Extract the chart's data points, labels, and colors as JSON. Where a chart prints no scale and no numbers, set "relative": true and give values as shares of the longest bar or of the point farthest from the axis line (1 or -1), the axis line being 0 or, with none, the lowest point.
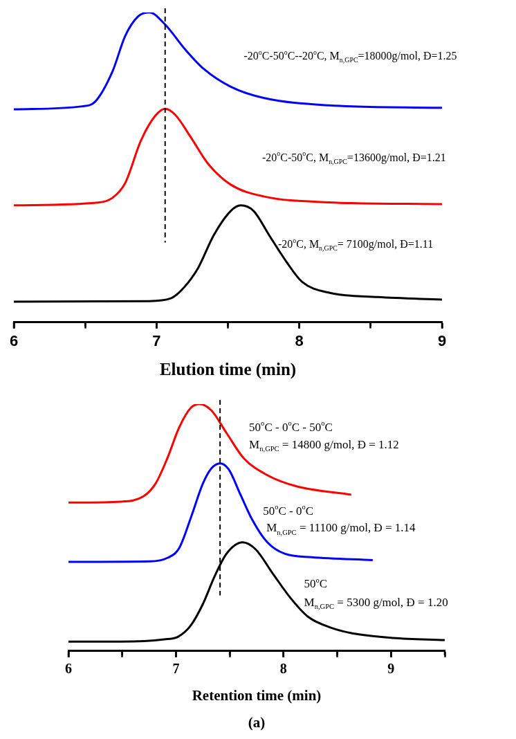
{
  "chart_data": [
    {
      "type": "line",
      "relative": true,
      "xlabel": "Elution time (min)",
      "xlim": [
        6,
        9
      ],
      "xticks": [
        6,
        {
          "value": 6.5,
          "label": null
        },
        7,
        {
          "value": 7.5,
          "label": null
        },
        8,
        {
          "value": 8.5,
          "label": null
        },
        9
      ],
      "tick_labels": "x",
      "legend": false,
      "series": [
        {
          "color": "#0000ff",
          "x": [
            6,
            6.48,
            6.57,
            6.69,
            6.78,
            6.87,
            6.95,
            7.06,
            7.2,
            7.33,
            7.52,
            7.75,
            8.21,
            9
          ],
          "values": [
            0.687,
            0.697,
            0.712,
            0.808,
            0.924,
            0.987,
            1,
            0.961,
            0.881,
            0.818,
            0.76,
            0.724,
            0.7,
            0.692
          ]
        },
        {
          "color": "#ff0000",
          "x": [
            6,
            6.59,
            6.69,
            6.78,
            6.89,
            6.99,
            7.06,
            7.13,
            7.24,
            7.36,
            7.52,
            7.75,
            8.21,
            9
          ],
          "values": [
            0.377,
            0.386,
            0.401,
            0.449,
            0.586,
            0.666,
            0.689,
            0.67,
            0.597,
            0.512,
            0.444,
            0.406,
            0.387,
            0.381
          ]
        },
        {
          "color": "#000000",
          "x": [
            6,
            6.94,
            7.1,
            7.19,
            7.29,
            7.4,
            7.52,
            7.59,
            7.68,
            7.79,
            7.91,
            8.02,
            8.21,
            8.55,
            9
          ],
          "values": [
            0.066,
            0.068,
            0.077,
            0.111,
            0.174,
            0.28,
            0.359,
            0.377,
            0.359,
            0.28,
            0.195,
            0.13,
            0.095,
            0.081,
            0.073
          ]
        }
      ],
      "ref_lines": [
        {
          "axis": "x",
          "value": 7.06,
          "line_style": "dashed",
          "color": "#000000"
        }
      ],
      "annotations": [
        "-20$^{o}$C-50$^{o}$C--20$^{o}$C, M$_{n,GPC}$=18000g/mol, Đ=1.25",
        "-20$^{o}$C-50$^{o}$C, M$_{n,GPC}$=13600g/mol, Đ=1.21",
        "-20$^{o}$C, M$_{n,GPC}$= 7100g/mol, Đ=1.11"
      ]
    },
    {
      "type": "line",
      "relative": true,
      "xlabel": "Retention time (min)",
      "xlim": [
        6,
        9.5
      ],
      "xticks": [
        6,
        {
          "value": 6.5,
          "label": null
        },
        7,
        {
          "value": 7.5,
          "label": null
        },
        8,
        {
          "value": 8.5,
          "label": null
        },
        9,
        {
          "value": 9.5,
          "label": null
        }
      ],
      "tick_labels": "x",
      "legend": false,
      "series": [
        {
          "color": "#ff0000",
          "x": [
            6,
            6.49,
            6.7,
            6.81,
            6.92,
            7.03,
            7.14,
            7.22,
            7.33,
            7.47,
            7.63,
            7.85,
            8.12,
            8.63
          ],
          "values": [
            0.601,
            0.605,
            0.627,
            0.678,
            0.781,
            0.906,
            0.986,
            1,
            0.974,
            0.883,
            0.781,
            0.712,
            0.667,
            0.633
          ]
        },
        {
          "color": "#0000ff",
          "x": [
            6,
            6.76,
            6.92,
            7.03,
            7.14,
            7.25,
            7.33,
            7.41,
            7.49,
            7.6,
            7.71,
            7.85,
            8.01,
            8.26,
            8.83
          ],
          "values": [
            0.361,
            0.363,
            0.377,
            0.417,
            0.542,
            0.678,
            0.74,
            0.76,
            0.736,
            0.633,
            0.531,
            0.44,
            0.394,
            0.38,
            0.368
          ]
        },
        {
          "color": "#000000",
          "x": [
            6,
            6.49,
            6.89,
            7.02,
            7.14,
            7.25,
            7.36,
            7.47,
            7.62,
            7.74,
            7.9,
            8.07,
            8.23,
            8.45,
            8.66,
            9.02,
            9.5
          ],
          "values": [
            0.038,
            0.038,
            0.047,
            0.058,
            0.105,
            0.19,
            0.303,
            0.394,
            0.44,
            0.412,
            0.314,
            0.212,
            0.138,
            0.093,
            0.07,
            0.053,
            0.044
          ]
        }
      ],
      "ref_lines": [
        {
          "axis": "x",
          "value": 7.41,
          "line_style": "dashed",
          "color": "#000000"
        }
      ],
      "annotations": [
        "50$^{o}$C - 0$^{o}$C - 50$^{o}$C",
        "M$_{n,GPC}$ = 14800 g/mol, Đ = 1.12",
        "50$^{o}$C - 0$^{o}$C",
        "M$_{n,GPC}$ = 11100 g/mol, Đ = 1.14",
        "50$^{o}$C",
        "M$_{n,GPC}$ = 5300 g/mol, Đ = 1.20",
        "(a)"
      ]
    }
  ]
}
